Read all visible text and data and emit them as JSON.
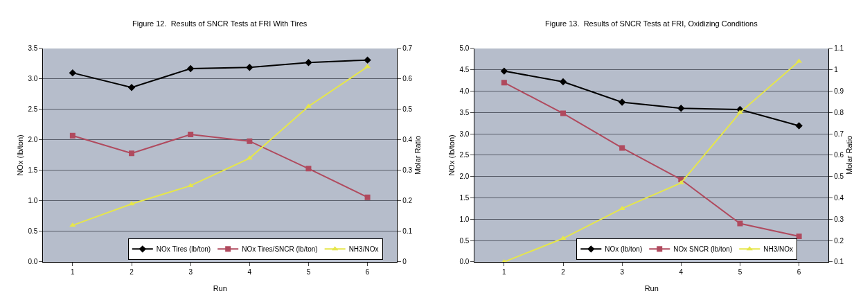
{
  "chart_data": [
    {
      "type": "line",
      "title": "Figure 12.  Results of SNCR Tests at FRI With Tires",
      "xlabel": "Run",
      "ylabel": "NOx (lb/ton)",
      "y2label": "Molar Ratio",
      "categories": [
        "1",
        "2",
        "3",
        "4",
        "5",
        "6"
      ],
      "series": [
        {
          "name": "NOx Tires (lb/ton)",
          "color": "#000000",
          "marker": "diamond",
          "values": [
            3.1,
            2.86,
            3.17,
            3.19,
            3.27,
            3.31
          ]
        },
        {
          "name": "NOx Tires/SNCR (lb/ton)",
          "color": "#b04a5e",
          "marker": "square",
          "values": [
            2.07,
            1.78,
            2.09,
            1.98,
            1.53,
            1.06
          ]
        },
        {
          "name": "NH3/NOx",
          "color": "#e6e64a",
          "marker": "triangle",
          "axis": "y2",
          "values": [
            0.12,
            0.19,
            0.25,
            0.34,
            0.51,
            0.64
          ]
        }
      ],
      "ylim": [
        0,
        3.5
      ],
      "yticks": [
        {
          "value": 0,
          "label": "0.0"
        },
        0.5,
        {
          "value": 1,
          "label": "1.0"
        },
        1.5,
        {
          "value": 2,
          "label": "2.0"
        },
        2.5,
        {
          "value": 3,
          "label": "3.0"
        },
        3.5
      ],
      "y2lim": [
        0,
        0.7
      ],
      "y2ticks": [
        0,
        0.1,
        0.2,
        0.3,
        0.4,
        0.5,
        0.6,
        0.7
      ],
      "grid": "y",
      "legend": "bottom"
    },
    {
      "type": "line",
      "title": "Figure 13.  Results of SNCR Tests at FRI, Oxidizing Conditions",
      "xlabel": "Run",
      "ylabel": "NOx (lb/ton)",
      "y2label": "Molar Ratio",
      "categories": [
        "1",
        "2",
        "3",
        "4",
        "5",
        "6"
      ],
      "series": [
        {
          "name": "NOx (lb/ton)",
          "color": "#000000",
          "marker": "diamond",
          "values": [
            4.47,
            4.22,
            3.74,
            3.6,
            3.57,
            3.19
          ]
        },
        {
          "name": "NOx SNCR (lb/ton)",
          "color": "#b04a5e",
          "marker": "square",
          "values": [
            4.2,
            3.48,
            2.67,
            1.93,
            0.9,
            0.6
          ]
        },
        {
          "name": "NH3/NOx",
          "color": "#e6e64a",
          "marker": "triangle",
          "axis": "y2",
          "values": [
            0.1,
            0.21,
            0.35,
            0.47,
            0.8,
            1.04
          ]
        }
      ],
      "ylim": [
        0,
        5
      ],
      "yticks": [
        {
          "value": 0,
          "label": "0.0"
        },
        0.5,
        {
          "value": 1,
          "label": "1.0"
        },
        1.5,
        {
          "value": 2,
          "label": "2.0"
        },
        2.5,
        {
          "value": 3,
          "label": "3.0"
        },
        3.5,
        {
          "value": 4,
          "label": "4.0"
        },
        4.5,
        {
          "value": 5,
          "label": "5.0"
        }
      ],
      "y2lim": [
        0.1,
        1.1
      ],
      "y2ticks": [
        0.1,
        0.2,
        0.3,
        0.4,
        0.5,
        0.6,
        0.7,
        0.8,
        0.9,
        1,
        1.1
      ],
      "grid": "y",
      "legend": "bottom"
    }
  ]
}
